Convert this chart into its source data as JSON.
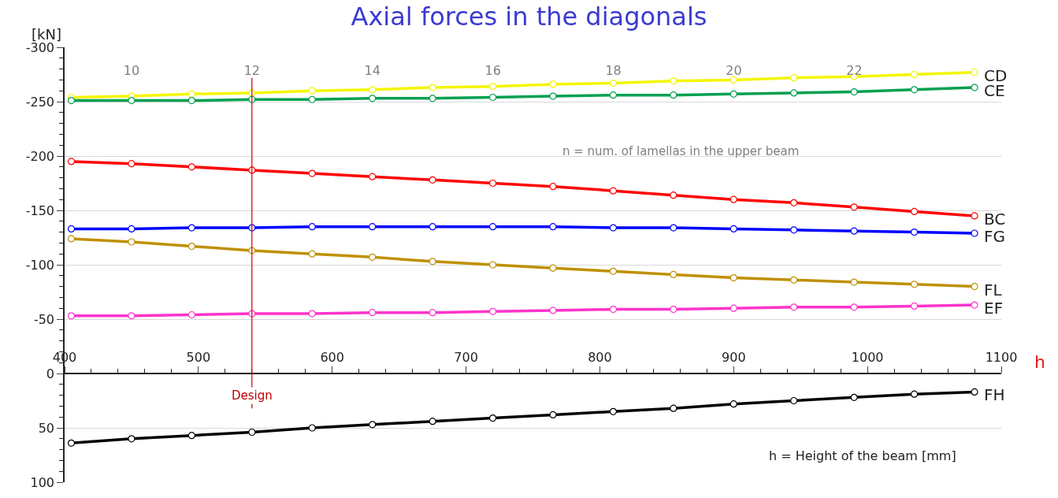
{
  "chart_data": {
    "type": "line",
    "title": "Axial forces in the diagonals",
    "ylabel": "[kN]",
    "xlabel": "h",
    "x": [
      405,
      450,
      495,
      540,
      585,
      630,
      675,
      720,
      765,
      810,
      855,
      900,
      945,
      990,
      1035,
      1080
    ],
    "series": [
      {
        "name": "CD",
        "color": "#f5f500",
        "values": [
          -254,
          -255,
          -257,
          -258,
          -260,
          -261,
          -263,
          -264,
          -266,
          -267,
          -269,
          -270,
          -272,
          -273,
          -275,
          -277
        ]
      },
      {
        "name": "CE",
        "color": "#00a050",
        "values": [
          -251,
          -251,
          -251,
          -252,
          -252,
          -253,
          -253,
          -254,
          -255,
          -256,
          -256,
          -257,
          -258,
          -259,
          -261,
          -263
        ]
      },
      {
        "name": "BC",
        "color": "#ff0000",
        "values": [
          -195,
          -193,
          -190,
          -187,
          -184,
          -181,
          -178,
          -175,
          -172,
          -168,
          -164,
          -160,
          -157,
          -153,
          -149,
          -145
        ]
      },
      {
        "name": "FG",
        "color": "#0000ff",
        "values": [
          -133,
          -133,
          -134,
          -134,
          -135,
          -135,
          -135,
          -135,
          -135,
          -134,
          -134,
          -133,
          -132,
          -131,
          -130,
          -129
        ]
      },
      {
        "name": "FL",
        "color": "#bf9000",
        "values": [
          -124,
          -121,
          -117,
          -113,
          -110,
          -107,
          -103,
          -100,
          -97,
          -94,
          -91,
          -88,
          -86,
          -84,
          -82,
          -80
        ]
      },
      {
        "name": "EF",
        "color": "#ff33cc",
        "values": [
          -53,
          -53,
          -54,
          -55,
          -55,
          -56,
          -56,
          -57,
          -58,
          -59,
          -59,
          -60,
          -61,
          -61,
          -62,
          -63
        ]
      },
      {
        "name": "FH",
        "color": "#000000",
        "values": [
          64,
          60,
          57,
          54,
          50,
          47,
          44,
          41,
          38,
          35,
          32,
          28,
          25,
          22,
          19,
          17
        ]
      }
    ],
    "xlim": [
      400,
      1100
    ],
    "xticks": [
      400,
      500,
      600,
      700,
      800,
      900,
      1000,
      1100
    ],
    "x2lim": [
      8.89,
      24.44
    ],
    "x2ticks": [
      10,
      12,
      14,
      16,
      18,
      20,
      22
    ],
    "ylim": [
      100,
      -300
    ],
    "yticks": [
      -300,
      -250,
      -200,
      -150,
      -100,
      -50,
      0,
      50,
      100
    ],
    "ref_lines": [
      {
        "axis": "x",
        "value": 540,
        "label": "Design",
        "color": "#c00000"
      }
    ],
    "annotations": [
      "n = num. of lamellas in the upper beam",
      "h = Height of the beam [mm]"
    ],
    "grid": "y",
    "legend": false,
    "marker": "circle",
    "line_style": "solid"
  }
}
